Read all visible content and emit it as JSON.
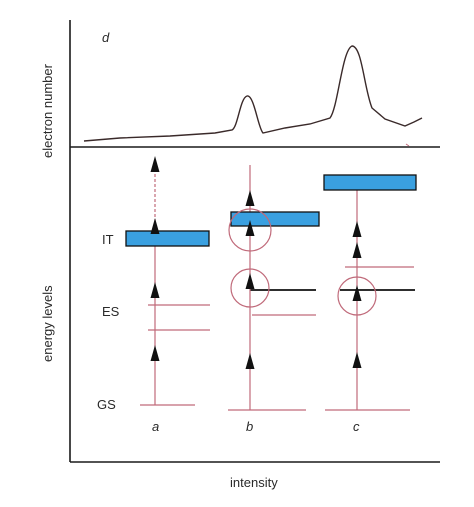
{
  "panel_label": "d",
  "y_axis_top_label": "electron number",
  "y_axis_bottom_label": "energy levels",
  "x_axis_label": "intensity",
  "level_labels": {
    "it": "IT",
    "es": "ES",
    "gs": "GS"
  },
  "column_labels": {
    "a": "a",
    "b": "b",
    "c": "c"
  },
  "colors": {
    "axis": "#1a1a1a",
    "spectrum": "#3a2a2a",
    "level_line": "#c06a7a",
    "transition_line": "#c06a7a",
    "ionization_band": "#3aa0e0",
    "circle": "#c06a7a",
    "arrowhead": "#111111"
  }
}
